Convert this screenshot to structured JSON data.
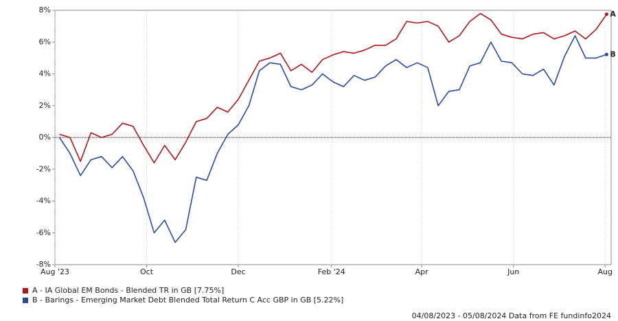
{
  "chart_data": {
    "type": "line",
    "x": [
      "2023-08-04",
      "2023-08-11",
      "2023-08-18",
      "2023-08-25",
      "2023-09-01",
      "2023-09-08",
      "2023-09-15",
      "2023-09-22",
      "2023-09-29",
      "2023-10-06",
      "2023-10-13",
      "2023-10-20",
      "2023-10-27",
      "2023-11-03",
      "2023-11-10",
      "2023-11-17",
      "2023-11-24",
      "2023-12-01",
      "2023-12-08",
      "2023-12-15",
      "2023-12-22",
      "2023-12-29",
      "2024-01-05",
      "2024-01-12",
      "2024-01-19",
      "2024-01-26",
      "2024-02-02",
      "2024-02-09",
      "2024-02-16",
      "2024-02-23",
      "2024-03-01",
      "2024-03-08",
      "2024-03-15",
      "2024-03-22",
      "2024-03-29",
      "2024-04-05",
      "2024-04-12",
      "2024-04-19",
      "2024-04-26",
      "2024-05-03",
      "2024-05-10",
      "2024-05-17",
      "2024-05-24",
      "2024-05-31",
      "2024-06-07",
      "2024-06-14",
      "2024-06-21",
      "2024-06-28",
      "2024-07-05",
      "2024-07-12",
      "2024-07-19",
      "2024-07-26",
      "2024-08-02"
    ],
    "series": [
      {
        "name": "A - IA Global EM Bonds - Blended TR in GB [7.75%]",
        "end_label": "A",
        "color": "#b0141c",
        "values": [
          0.2,
          0.0,
          -1.5,
          0.3,
          0.0,
          0.2,
          0.9,
          0.7,
          -0.5,
          -1.6,
          -0.5,
          -1.4,
          -0.3,
          1.0,
          1.2,
          1.9,
          1.6,
          2.4,
          3.6,
          4.8,
          5.0,
          5.3,
          4.2,
          4.6,
          4.1,
          4.9,
          5.2,
          5.4,
          5.3,
          5.5,
          5.8,
          5.8,
          6.2,
          7.3,
          7.2,
          7.3,
          7.0,
          6.0,
          6.4,
          7.3,
          7.8,
          7.4,
          6.5,
          6.3,
          6.2,
          6.5,
          6.6,
          6.2,
          6.4,
          6.7,
          6.2,
          6.8,
          7.75
        ]
      },
      {
        "name": "B - Barings - Emerging Market Debt Blended Total Return C Acc GBP in GB [5.22%]",
        "end_label": "B",
        "color": "#2a4a9c",
        "values": [
          0.0,
          -1.0,
          -2.4,
          -1.4,
          -1.2,
          -1.9,
          -1.2,
          -2.1,
          -3.8,
          -6.0,
          -5.2,
          -6.6,
          -5.8,
          -2.5,
          -2.7,
          -1.0,
          0.2,
          0.8,
          2.0,
          4.2,
          4.7,
          4.6,
          3.2,
          3.0,
          3.3,
          4.0,
          3.5,
          3.2,
          3.9,
          3.6,
          3.8,
          4.5,
          4.9,
          4.4,
          4.7,
          4.4,
          2.0,
          2.9,
          3.0,
          4.5,
          4.7,
          6.0,
          4.8,
          4.7,
          4.0,
          3.9,
          4.3,
          3.3,
          5.1,
          6.4,
          5.0,
          5.0,
          5.22
        ]
      }
    ],
    "xlim": [
      "2023-08-01",
      "2024-08-05"
    ],
    "xticks": [
      {
        "value": "2023-08-01",
        "label": "Aug '23"
      },
      {
        "value": "2023-10-01",
        "label": "Oct"
      },
      {
        "value": "2023-12-01",
        "label": "Dec"
      },
      {
        "value": "2024-02-01",
        "label": "Feb '24"
      },
      {
        "value": "2024-04-01",
        "label": "Apr"
      },
      {
        "value": "2024-06-01",
        "label": "Jun"
      },
      {
        "value": "2024-08-01",
        "label": "Aug"
      }
    ],
    "ylim": [
      -8,
      8
    ],
    "yticks": [
      {
        "value": -8,
        "label": "-8%"
      },
      {
        "value": -6,
        "label": "-6%"
      },
      {
        "value": -4,
        "label": "-4%"
      },
      {
        "value": -2,
        "label": "-2%"
      },
      {
        "value": 0,
        "label": "0%"
      },
      {
        "value": 2,
        "label": "2%"
      },
      {
        "value": 4,
        "label": "4%"
      },
      {
        "value": 6,
        "label": "6%"
      },
      {
        "value": 8,
        "label": "8%"
      }
    ],
    "grid": "x",
    "zero_line": true,
    "footer": "04/08/2023 - 05/08/2024 Data from FE fundinfo2024"
  }
}
